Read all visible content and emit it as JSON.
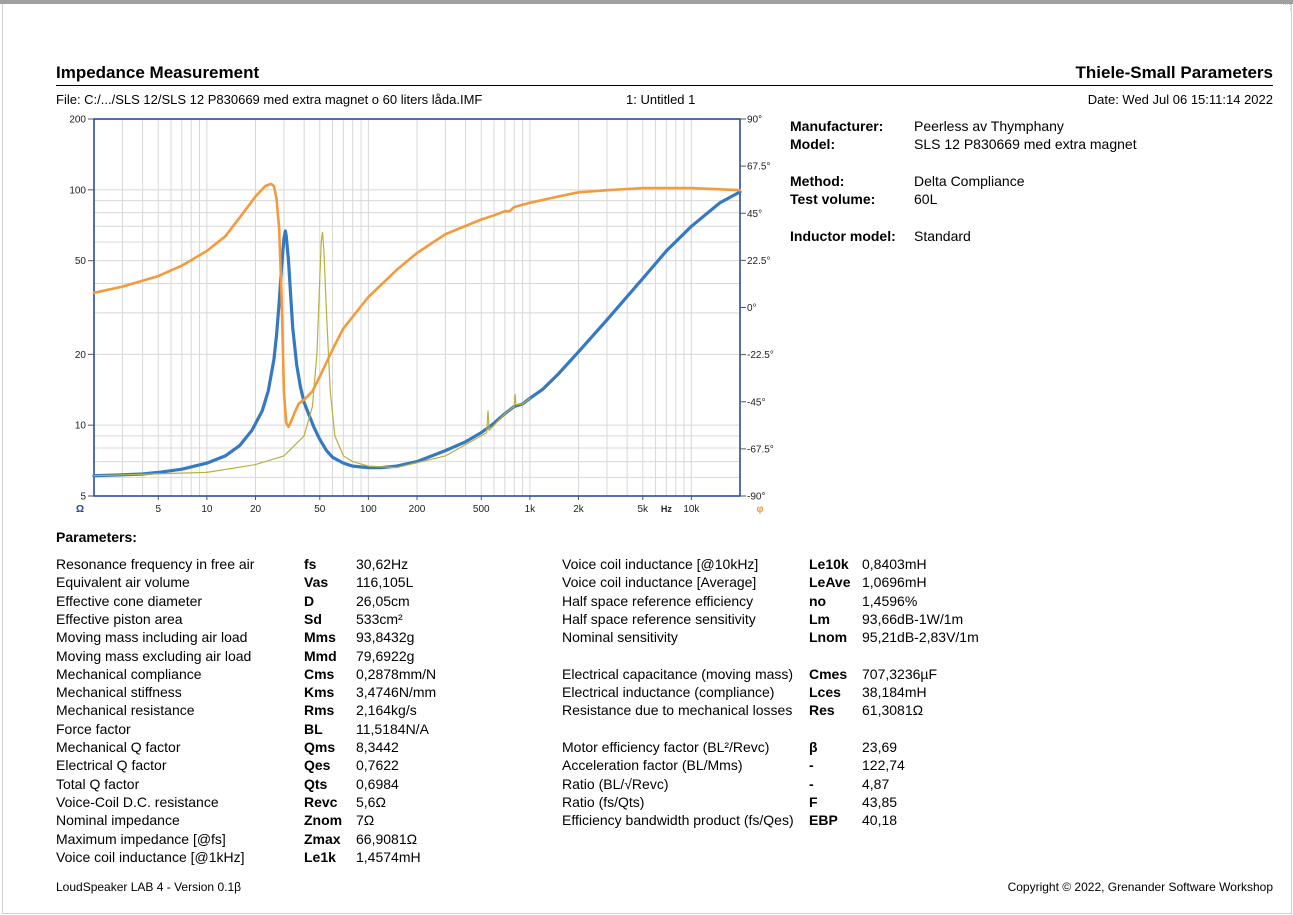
{
  "header": {
    "title_left": "Impedance Measurement",
    "title_right": "Thiele-Small Parameters",
    "file": "File: C:/.../SLS 12/SLS 12 P830669 med extra magnet o 60 liters låda.IMF",
    "untitled": "1: Untitled 1",
    "date": "Date: Wed Jul 06 15:11:14 2022"
  },
  "specs": [
    {
      "label": "Manufacturer:",
      "value": "Peerless av Thymphany"
    },
    {
      "label": "Model:",
      "value": " SLS 12 P830669 med extra magnet"
    },
    {
      "label": "Method:",
      "value": "Delta Compliance"
    },
    {
      "label": "Test volume:",
      "value": "60L"
    },
    {
      "label": "Inductor model:",
      "value": "Standard"
    }
  ],
  "parameters_title": "Parameters:",
  "params_left": [
    {
      "name": "Resonance frequency in free air",
      "sym": "fs",
      "val": "30,62Hz"
    },
    {
      "name": "Equivalent air volume",
      "sym": "Vas",
      "val": "116,105L"
    },
    {
      "name": "Effective cone diameter",
      "sym": "D",
      "val": "26,05cm"
    },
    {
      "name": "Effective piston area",
      "sym": "Sd",
      "val": "533cm²"
    },
    {
      "name": "Moving mass including air load",
      "sym": "Mms",
      "val": "93,8432g"
    },
    {
      "name": "Moving mass excluding air load",
      "sym": "Mmd",
      "val": "79,6922g"
    },
    {
      "name": "Mechanical compliance",
      "sym": "Cms",
      "val": "0,2878mm/N"
    },
    {
      "name": "Mechanical stiffness",
      "sym": "Kms",
      "val": "3,4746N/mm"
    },
    {
      "name": "Mechanical resistance",
      "sym": "Rms",
      "val": "2,164kg/s"
    },
    {
      "name": "Force factor",
      "sym": "BL",
      "val": "11,5184N/A"
    },
    {
      "name": "Mechanical Q factor",
      "sym": "Qms",
      "val": "8,3442"
    },
    {
      "name": "Electrical Q factor",
      "sym": "Qes",
      "val": "0,7622"
    },
    {
      "name": "Total Q factor",
      "sym": "Qts",
      "val": "0,6984"
    },
    {
      "name": "Voice-Coil D.C. resistance",
      "sym": "Revc",
      "val": "5,6Ω"
    },
    {
      "name": "Nominal impedance",
      "sym": "Znom",
      "val": "7Ω"
    },
    {
      "name": "Maximum impedance [@fs]",
      "sym": "Zmax",
      "val": "66,9081Ω"
    },
    {
      "name": "Voice coil inductance [@1kHz]",
      "sym": "Le1k",
      "val": "1,4574mH"
    }
  ],
  "params_right": [
    {
      "name": "Voice coil inductance [@10kHz]",
      "sym": "Le10k",
      "val": "0,8403mH",
      "slot": 0
    },
    {
      "name": "Voice coil inductance [Average]",
      "sym": "LeAve",
      "val": "1,0696mH",
      "slot": 1
    },
    {
      "name": "Half space reference efficiency",
      "sym": "no",
      "val": "1,4596%",
      "slot": 2
    },
    {
      "name": "Half space reference sensitivity",
      "sym": "Lm",
      "val": "93,66dB-1W/1m",
      "slot": 3
    },
    {
      "name": "Nominal sensitivity",
      "sym": "Lnom",
      "val": "95,21dB-2,83V/1m",
      "slot": 4
    },
    {
      "name": "Electrical capacitance (moving mass)",
      "sym": "Cmes",
      "val": "707,3236µF",
      "slot": 6
    },
    {
      "name": "Electrical inductance (compliance)",
      "sym": "Lces",
      "val": "38,184mH",
      "slot": 7
    },
    {
      "name": "Resistance due to mechanical losses",
      "sym": "Res",
      "val": "61,3081Ω",
      "slot": 8
    },
    {
      "name": "Motor efficiency factor (BL²/Revc)",
      "sym": "β",
      "val": "23,69",
      "slot": 10
    },
    {
      "name": "Acceleration factor (BL/Mms)",
      "sym": "-",
      "val": "122,74",
      "slot": 11
    },
    {
      "name": "Ratio (BL/√Revc)",
      "sym": "-",
      "val": "4,87",
      "slot": 12
    },
    {
      "name": "Ratio (fs/Qts)",
      "sym": "F",
      "val": "43,85",
      "slot": 13
    },
    {
      "name": "Efficiency bandwidth product (fs/Qes)",
      "sym": "EBP",
      "val": "40,18",
      "slot": 14
    }
  ],
  "footer": {
    "left": "LoudSpeaker LAB 4 - Version 0.1β",
    "right": "Copyright © 2022, Grenander Software Workshop"
  },
  "chart_data": {
    "type": "line",
    "x_scale": "log",
    "y_scale": "log",
    "xlim": [
      2,
      20000
    ],
    "ylim": [
      5,
      200
    ],
    "y2lim": [
      -90,
      90
    ],
    "grid": true,
    "x_ticks": [
      {
        "v": 5,
        "label": "5"
      },
      {
        "v": 10,
        "label": "10"
      },
      {
        "v": 20,
        "label": "20"
      },
      {
        "v": 50,
        "label": "50"
      },
      {
        "v": 100,
        "label": "100"
      },
      {
        "v": 200,
        "label": "200"
      },
      {
        "v": 500,
        "label": "500"
      },
      {
        "v": 1000,
        "label": "1k"
      },
      {
        "v": 2000,
        "label": "2k"
      },
      {
        "v": 5000,
        "label": "5k"
      },
      {
        "v": 10000,
        "label": "10k"
      }
    ],
    "x_unit_label": "Hz",
    "y_ticks": [
      {
        "v": 200,
        "label": "200"
      },
      {
        "v": 100,
        "label": "100"
      },
      {
        "v": 50,
        "label": "50"
      },
      {
        "v": 20,
        "label": "20"
      },
      {
        "v": 10,
        "label": "10"
      },
      {
        "v": 5,
        "label": "5"
      }
    ],
    "y_unit_label": "Ω",
    "y2_ticks": [
      {
        "v": 90,
        "label": "90°"
      },
      {
        "v": 67.5,
        "label": "67.5°"
      },
      {
        "v": 45,
        "label": "45°"
      },
      {
        "v": 22.5,
        "label": "22.5°"
      },
      {
        "v": 0,
        "label": "0°"
      },
      {
        "v": -22.5,
        "label": "-22.5°"
      },
      {
        "v": -45,
        "label": "-45°"
      },
      {
        "v": -67.5,
        "label": "-67.5°"
      },
      {
        "v": -90,
        "label": "-90°"
      }
    ],
    "y2_unit_label": "φ",
    "colors": {
      "impedance": "#3579c0",
      "phase": "#f59a3c",
      "reference": "#b8b040",
      "grid": "#d8d8d8",
      "axis": "#1f3fa0"
    },
    "series": [
      {
        "key": "impedance",
        "axis": "left",
        "x": [
          2,
          3,
          4,
          5,
          7,
          10,
          13,
          16,
          19,
          22,
          24,
          26,
          27,
          28,
          29,
          30,
          30.6,
          31,
          32,
          33,
          34,
          36,
          38,
          40,
          43,
          46,
          50,
          55,
          60,
          70,
          80,
          100,
          120,
          150,
          200,
          300,
          400,
          500,
          600,
          700,
          800,
          900,
          1000,
          1200,
          1500,
          2000,
          3000,
          5000,
          7000,
          10000,
          15000,
          20000
        ],
        "y": [
          6.1,
          6.15,
          6.2,
          6.3,
          6.5,
          6.9,
          7.4,
          8.2,
          9.5,
          11.5,
          14,
          19,
          24,
          33,
          47,
          62,
          66.9,
          64,
          50,
          36,
          26,
          18,
          14.5,
          12.5,
          11,
          9.8,
          8.7,
          7.8,
          7.3,
          6.9,
          6.7,
          6.6,
          6.6,
          6.7,
          7.0,
          7.8,
          8.5,
          9.3,
          10.2,
          11.2,
          12.0,
          12.3,
          13.0,
          14.2,
          16.5,
          20.5,
          28,
          42,
          55,
          70,
          88,
          98
        ]
      },
      {
        "key": "phase",
        "axis": "right",
        "x": [
          2,
          3,
          5,
          7,
          10,
          13,
          16,
          20,
          23,
          25,
          26,
          27,
          28,
          29,
          30,
          31,
          32,
          33,
          35,
          37,
          40,
          45,
          50,
          60,
          70,
          100,
          150,
          200,
          300,
          500,
          600,
          700,
          750,
          800,
          1000,
          1500,
          2000,
          3000,
          5000,
          10000,
          20000
        ],
        "y": [
          7,
          10,
          15,
          20,
          27,
          34,
          43,
          53,
          58,
          59,
          58,
          52,
          38,
          5,
          -40,
          -55,
          -57,
          -55,
          -50,
          -46,
          -44,
          -40,
          -33,
          -20,
          -10,
          5,
          18,
          26,
          35,
          42,
          44,
          46,
          46,
          48,
          50,
          53,
          55,
          56,
          57,
          57,
          56
        ]
      },
      {
        "key": "reference",
        "axis": "left",
        "x": [
          2,
          10,
          20,
          30,
          40,
          45,
          48,
          50,
          51,
          52,
          53,
          55,
          58,
          62,
          70,
          80,
          100,
          150,
          300,
          500,
          540,
          550,
          560,
          700,
          800,
          810,
          820,
          900,
          1000
        ],
        "y": [
          6.1,
          6.3,
          6.8,
          7.4,
          9,
          12,
          20,
          42,
          60,
          66,
          55,
          30,
          14,
          9,
          7.4,
          7.0,
          6.7,
          6.6,
          7.4,
          9.0,
          9.3,
          11.5,
          9.5,
          11.2,
          12.0,
          13.5,
          12.2,
          12.3,
          13.0
        ]
      }
    ]
  }
}
